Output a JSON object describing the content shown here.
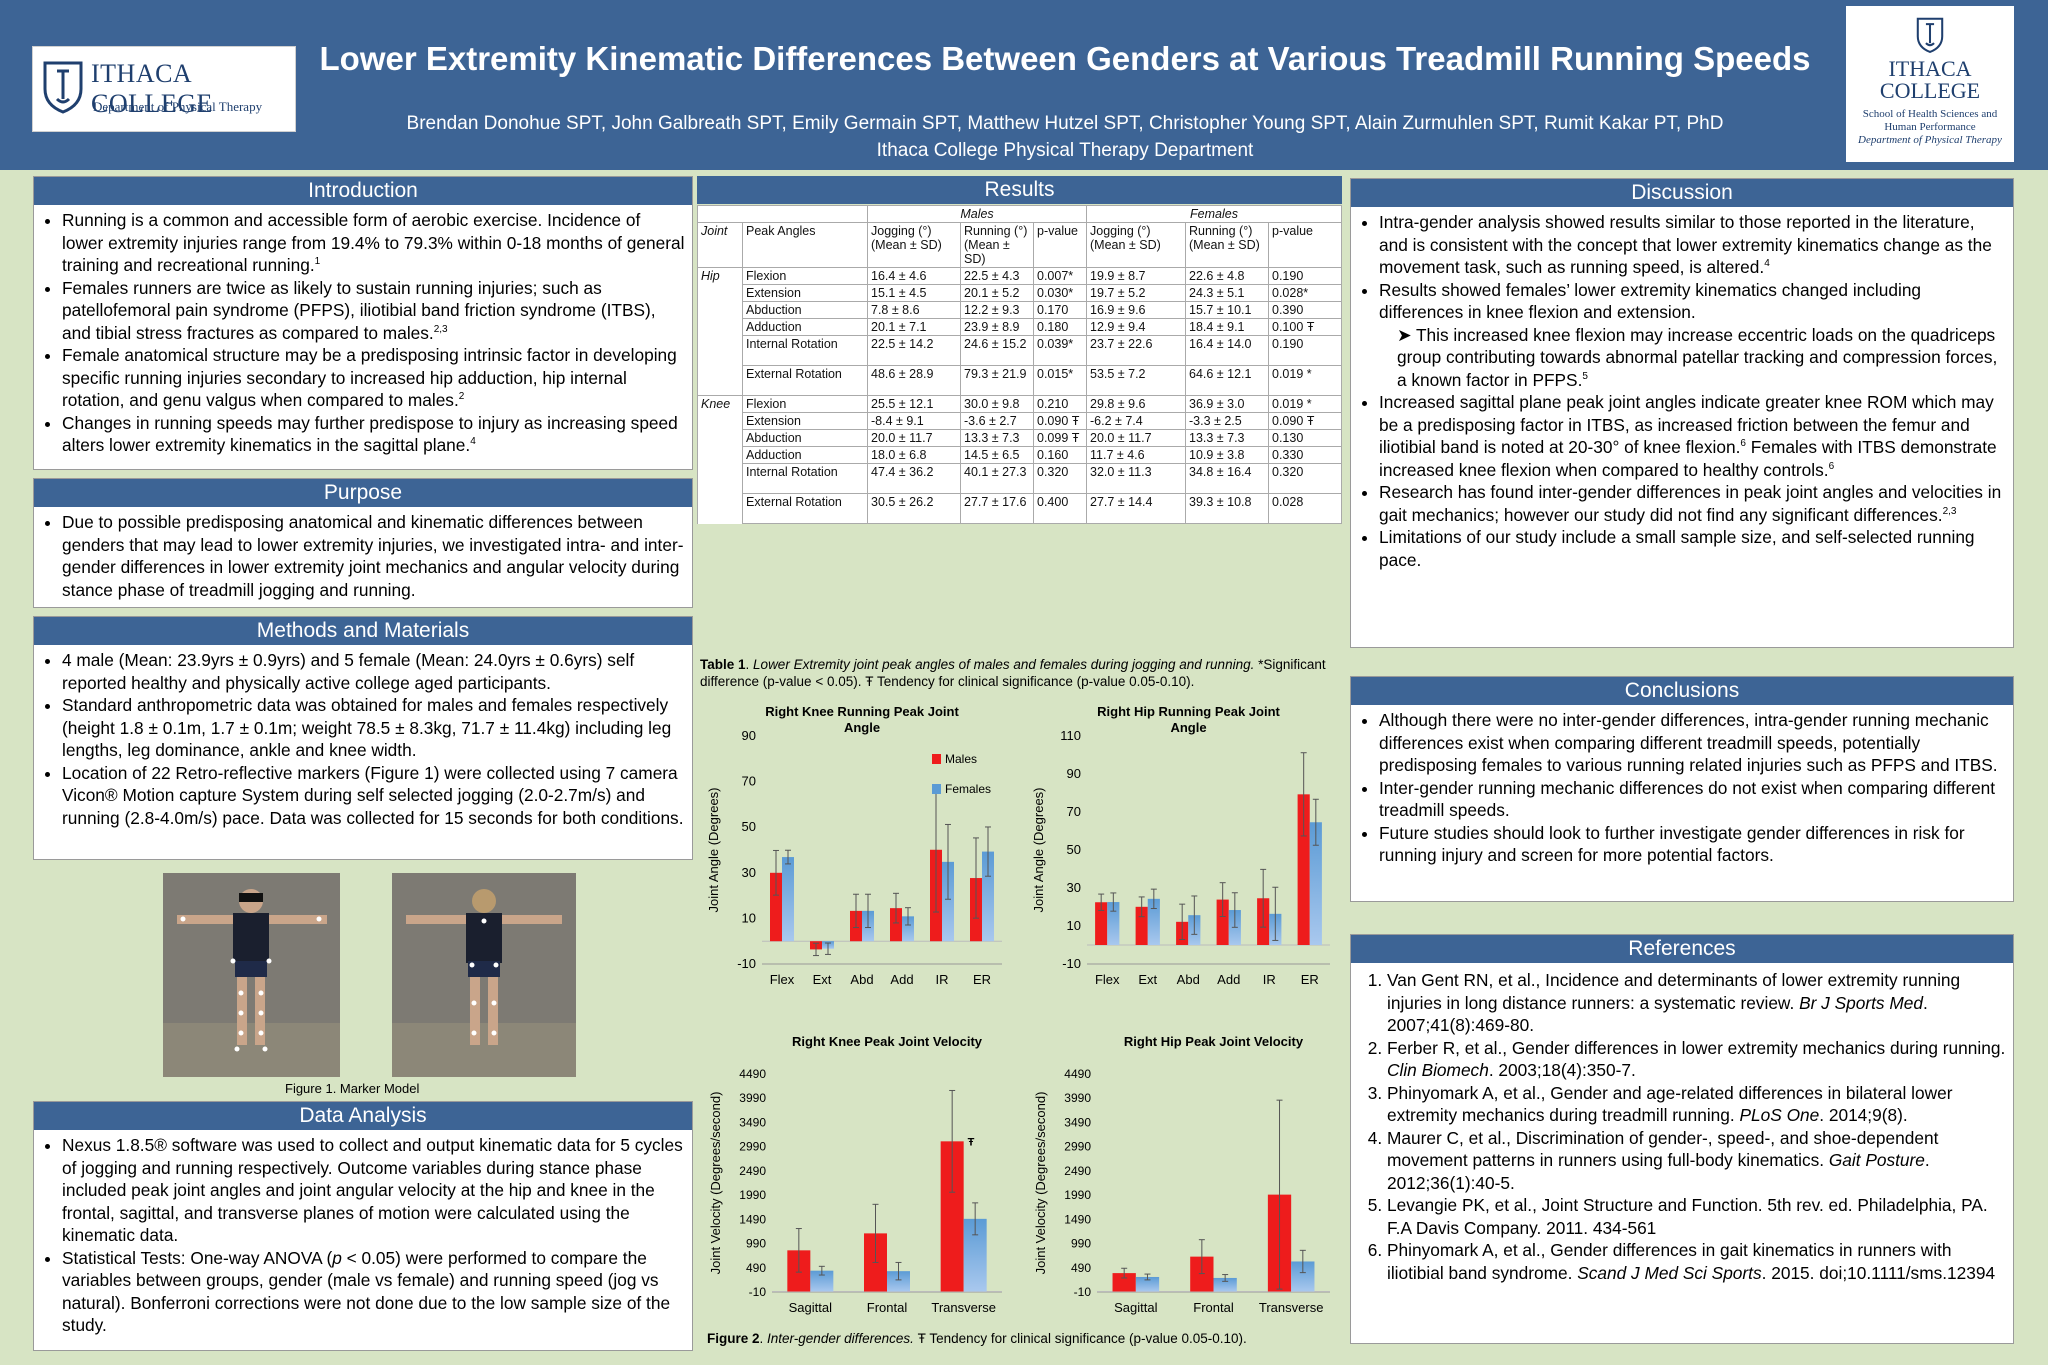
{
  "header": {
    "title": "Lower Extremity Kinematic Differences Between Genders at Various Treadmill Running Speeds",
    "authors": "Brendan Donohue SPT, John Galbreath SPT, Emily Germain SPT, Matthew Hutzel SPT, Christopher Young SPT, Alain Zurmuhlen SPT, Rumit Kakar PT, PhD",
    "affiliation": "Ithaca College Physical Therapy Department",
    "logo_left_name": "ITHACA COLLEGE",
    "logo_left_dept": "Department of Physical Therapy",
    "logo_right_name1": "ITHACA",
    "logo_right_name2": "COLLEGE",
    "logo_right_school1": "School of Health Sciences and",
    "logo_right_school2": "Human Performance",
    "logo_right_dept": "Department of Physical Therapy"
  },
  "introduction": {
    "heading": "Introduction",
    "bullets": [
      "Running is a common and accessible form of aerobic exercise. Incidence of lower extremity injuries range from 19.4% to 79.3% within 0-18 months of general training and recreational running.",
      "Females runners are twice as likely to sustain running injuries; such as patellofemoral pain syndrome (PFPS), iliotibial band friction syndrome (ITBS), and tibial stress fractures as compared to males.",
      "Female anatomical structure may be a predisposing intrinsic factor in developing specific running injuries secondary to increased hip adduction, hip internal rotation, and genu valgus when compared to males.",
      "Changes in running speeds may further predispose to injury as increasing speed alters lower extremity kinematics in the sagittal plane."
    ],
    "sups": [
      "1",
      "2,3",
      "2",
      "4"
    ]
  },
  "purpose": {
    "heading": "Purpose",
    "bullets": [
      "Due to possible predisposing anatomical and kinematic differences between genders that may lead to lower extremity injuries, we investigated intra- and inter-gender differences in lower extremity joint mechanics and angular velocity during stance phase of treadmill jogging and running."
    ]
  },
  "methods": {
    "heading": "Methods and Materials",
    "bullets": [
      "4 male (Mean: 23.9yrs ± 0.9yrs) and 5 female (Mean: 24.0yrs ± 0.6yrs) self reported healthy and physically active college aged participants.",
      "Standard anthropometric data was obtained for males and females respectively (height 1.8 ± 0.1m, 1.7 ± 0.1m; weight 78.5 ± 8.3kg, 71.7 ± 11.4kg) including leg lengths, leg dominance, ankle and knee width.",
      "Location of 22 Retro-reflective markers (Figure 1) were collected using 7 camera Vicon® Motion capture System during self selected jogging (2.0-2.7m/s) and running (2.8-4.0m/s) pace. Data was collected for 15 seconds for both conditions."
    ],
    "figure_caption": "Figure 1. Marker Model"
  },
  "data_analysis": {
    "heading": "Data Analysis",
    "bullet1": "Nexus 1.8.5® software was used to collect and output kinematic data for 5 cycles of jogging and running respectively. Outcome variables during stance phase included peak joint angles and joint angular velocity at the hip and knee in the frontal, sagittal, and transverse planes of motion were calculated using the kinematic data.",
    "bullet2_a": "Statistical Tests: One-way ANOVA (",
    "bullet2_p": "p",
    "bullet2_b": " < 0.05) were performed to compare the variables between groups, gender (male vs female) and running speed (jog vs natural). Bonferroni corrections were not done due to the low sample size of the study."
  },
  "results": {
    "heading": "Results",
    "table": {
      "group_males": "Males",
      "group_females": "Females",
      "headers": [
        "Joint",
        "Peak Angles",
        "Jogging (°) (Mean ± SD)",
        "Running (°) (Mean ± SD)",
        "p-value",
        "Jogging (°) (Mean ± SD)",
        "Running (°) (Mean ± SD)",
        "p-value"
      ],
      "rows": [
        [
          "Hip",
          "Flexion",
          "16.4 ± 4.6",
          "22.5 ± 4.3",
          "0.007*",
          "19.9 ± 8.7",
          "22.6 ± 4.8",
          "0.190"
        ],
        [
          "",
          "Extension",
          "15.1 ± 4.5",
          "20.1 ± 5.2",
          "0.030*",
          "19.7 ± 5.2",
          "24.3 ± 5.1",
          "0.028*"
        ],
        [
          "",
          "Abduction",
          "7.8 ± 8.6",
          "12.2 ± 9.3",
          "0.170",
          "16.9 ± 9.6",
          "15.7 ± 10.1",
          "0.390"
        ],
        [
          "",
          "Adduction",
          "20.1 ± 7.1",
          "23.9 ± 8.9",
          "0.180",
          "12.9 ± 9.4",
          "18.4 ± 9.1",
          "0.100 Ŧ"
        ],
        [
          "",
          "Internal Rotation",
          "22.5 ± 14.2",
          "24.6 ± 15.2",
          "0.039*",
          "23.7 ± 22.6",
          "16.4 ± 14.0",
          "0.190"
        ],
        [
          "",
          "External Rotation",
          "48.6 ± 28.9",
          "79.3 ± 21.9",
          "0.015*",
          "53.5 ± 7.2",
          "64.6 ± 12.1",
          "0.019 *"
        ],
        [
          "Knee",
          "Flexion",
          "25.5 ± 12.1",
          "30.0 ± 9.8",
          "0.210",
          "29.8 ± 9.6",
          "36.9 ± 3.0",
          "0.019 *"
        ],
        [
          "",
          "Extension",
          "-8.4 ± 9.1",
          "-3.6 ± 2.7",
          "0.090 Ŧ",
          "-6.2 ± 7.4",
          "-3.3 ± 2.5",
          "0.090 Ŧ"
        ],
        [
          "",
          "Abduction",
          "20.0 ± 11.7",
          "13.3 ± 7.3",
          "0.099 Ŧ",
          "20.0 ± 11.7",
          "13.3 ± 7.3",
          "0.130"
        ],
        [
          "",
          "Adduction",
          "18.0 ± 6.8",
          "14.5 ± 6.5",
          "0.160",
          "11.7 ± 4.6",
          "10.9 ± 3.8",
          "0.330"
        ],
        [
          "",
          "Internal Rotation",
          "47.4 ± 36.2",
          "40.1 ± 27.3",
          "0.320",
          "32.0 ± 11.3",
          "34.8 ± 16.4",
          "0.320"
        ],
        [
          "",
          "External Rotation",
          "30.5 ± 26.2",
          "27.7 ± 17.6",
          "0.400",
          "27.7 ± 14.4",
          "39.3 ± 10.8",
          "0.028"
        ]
      ]
    },
    "table_caption_a": "Table 1",
    "table_caption_b": ". ",
    "table_caption_c": "Lower Extremity joint peak angles of males and females during jogging and running.",
    "table_caption_d": " *Significant difference (p-value < 0.05). Ŧ Tendency for clinical significance (p-value 0.05-0.10).",
    "figure_caption_a": "Figure 2",
    "figure_caption_b": ". ",
    "figure_caption_c": "Inter-gender differences.",
    "figure_caption_d": " Ŧ Tendency for clinical significance (p-value 0.05-0.10)."
  },
  "chart_data": [
    {
      "type": "bar",
      "title": "Right Knee Running Peak Joint Angle",
      "categories": [
        "Flex",
        "Ext",
        "Abd",
        "Add",
        "IR",
        "ER"
      ],
      "series": [
        {
          "name": "Males",
          "values": [
            30.0,
            -3.6,
            13.3,
            14.5,
            40.1,
            27.7
          ],
          "errors": [
            9.8,
            2.7,
            7.3,
            6.5,
            27.3,
            17.6
          ]
        },
        {
          "name": "Females",
          "values": [
            36.9,
            -3.3,
            13.3,
            10.9,
            34.8,
            39.3
          ],
          "errors": [
            3.0,
            2.5,
            7.3,
            3.8,
            16.4,
            10.8
          ]
        }
      ],
      "ylabel": "Joint Angle (Degrees)",
      "ylim": [
        -10,
        90
      ],
      "yticks": [
        -10,
        10,
        30,
        50,
        70,
        90
      ],
      "legend": "top-right",
      "colors": [
        "#ee1c1c",
        "#5b9bd5"
      ],
      "annotations": []
    },
    {
      "type": "bar",
      "title": "Right Hip Running Peak Joint Angle",
      "categories": [
        "Flex",
        "Ext",
        "Abd",
        "Add",
        "IR",
        "ER"
      ],
      "series": [
        {
          "name": "Males",
          "values": [
            22.5,
            20.1,
            12.2,
            23.9,
            24.6,
            79.3
          ],
          "errors": [
            4.3,
            5.2,
            9.3,
            8.9,
            15.2,
            21.9
          ]
        },
        {
          "name": "Females",
          "values": [
            22.6,
            24.3,
            15.7,
            18.4,
            16.4,
            64.6
          ],
          "errors": [
            4.8,
            5.1,
            10.1,
            9.1,
            14.0,
            12.1
          ]
        }
      ],
      "ylabel": "Joint Angle (Degrees)",
      "ylim": [
        -10,
        110
      ],
      "yticks": [
        -10,
        10,
        30,
        50,
        70,
        90,
        110
      ],
      "colors": [
        "#ee1c1c",
        "#5b9bd5"
      ],
      "annotations": []
    },
    {
      "type": "bar",
      "title": "Right Knee Peak Joint Velocity",
      "categories": [
        "Sagittal",
        "Frontal",
        "Transverse"
      ],
      "series": [
        {
          "name": "Males",
          "values": [
            850,
            1200,
            3100
          ],
          "errors": [
            450,
            600,
            1050
          ]
        },
        {
          "name": "Females",
          "values": [
            430,
            420,
            1500
          ],
          "errors": [
            90,
            180,
            330
          ]
        }
      ],
      "ylabel": "Joint Velocity (Degrees/second)",
      "ylim": [
        -10,
        4490
      ],
      "yticks": [
        -10,
        490,
        990,
        1490,
        1990,
        2490,
        2990,
        3490,
        3990,
        4490
      ],
      "colors": [
        "#ee1c1c",
        "#5b9bd5"
      ],
      "annotations": [
        {
          "text": "Ŧ",
          "category": "Transverse"
        }
      ]
    },
    {
      "type": "bar",
      "title": "Right Hip Peak Joint Velocity",
      "categories": [
        "Sagittal",
        "Frontal",
        "Transverse"
      ],
      "series": [
        {
          "name": "Males",
          "values": [
            380,
            720,
            2000
          ],
          "errors": [
            100,
            350,
            1950
          ]
        },
        {
          "name": "Females",
          "values": [
            300,
            280,
            620
          ],
          "errors": [
            60,
            70,
            230
          ]
        }
      ],
      "ylabel": "Joint Velocity (Degrees/second)",
      "ylim": [
        -10,
        4490
      ],
      "yticks": [
        -10,
        490,
        990,
        1490,
        1990,
        2490,
        2990,
        3490,
        3990,
        4490
      ],
      "colors": [
        "#ee1c1c",
        "#5b9bd5"
      ],
      "annotations": []
    }
  ],
  "discussion": {
    "heading": "Discussion",
    "b1": "Intra-gender analysis showed results similar to those reported in the literature, and is consistent with the concept that lower extremity kinematics change as the movement task, such as running speed, is altered.",
    "b1_sup": "4",
    "b2": "Results showed females’ lower extremity kinematics changed including differences in knee flexion and extension.",
    "b2_sub": "This increased knee flexion may increase eccentric loads on the quadriceps group contributing towards abnormal patellar tracking and compression forces, a known factor in PFPS.",
    "b2_sub_sup": "5",
    "b3": "Increased sagittal plane peak joint angles indicate greater knee ROM which may be a predisposing factor in ITBS, as increased friction between the femur and iliotibial band is noted at 20-30° of knee flexion.",
    "b3_sup1": "6",
    "b3_b": " Females with ITBS demonstrate increased knee flexion when compared to healthy controls.",
    "b3_sup2": "6",
    "b4": "Research has found inter-gender differences in peak joint angles and velocities in gait mechanics; however our study did not find any significant differences.",
    "b4_sup": "2,3",
    "b5": "Limitations of our study include a small sample size, and self-selected running pace."
  },
  "conclusions": {
    "heading": "Conclusions",
    "bullets": [
      "Although there were no inter-gender differences, intra-gender running mechanic differences exist when comparing different treadmill speeds, potentially predisposing females to various running related injuries such as PFPS and ITBS.",
      "Inter-gender running mechanic differences do not exist when comparing different treadmill speeds.",
      "Future studies should look to further investigate gender differences in risk for running injury and screen for more potential factors."
    ]
  },
  "references": {
    "heading": "References",
    "items": [
      {
        "a": "Van Gent RN, et al., Incidence and determinants of lower extremity running injuries in long distance runners: a systematic review. ",
        "i": "Br J Sports Med",
        "b": ". 2007;41(8):469-80."
      },
      {
        "a": "Ferber R, et al., Gender differences in lower extremity mechanics during running. ",
        "i": "Clin Biomech",
        "b": ". 2003;18(4):350-7."
      },
      {
        "a": "Phinyomark A, et al., Gender and age-related differences in bilateral lower extremity mechanics during treadmill running. ",
        "i": "PLoS One",
        "b": ". 2014;9(8)."
      },
      {
        "a": "Maurer C, et al., Discrimination of gender-, speed-, and shoe-dependent movement patterns in runners using full-body kinematics. ",
        "i": "Gait Posture",
        "b": ". 2012;36(1):40-5."
      },
      {
        "a": "Levangie PK, et al., Joint Structure and Function. 5th rev. ed. Philadelphia, PA. F.A Davis Company. 2011. 434-561",
        "i": "",
        "b": ""
      },
      {
        "a": "Phinyomark A, et al., Gender differences in gait kinematics in runners with iliotibial band syndrome. ",
        "i": "Scand J Med Sci Sports",
        "b": ". 2015. doi;10.1111/sms.12394"
      }
    ]
  }
}
